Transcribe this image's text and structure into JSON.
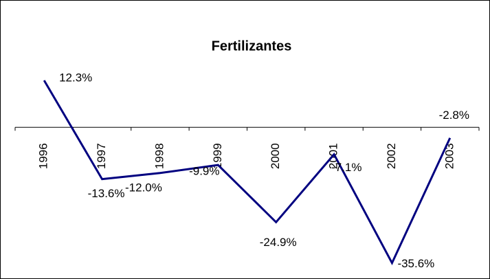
{
  "chart_data": {
    "type": "line",
    "title": "Fertilizantes",
    "categories": [
      "1996",
      "1997",
      "1998",
      "1999",
      "2000",
      "2001",
      "2002",
      "2003"
    ],
    "series": [
      {
        "name": "Fertilizantes",
        "color": "#000080",
        "values": [
          12.3,
          -13.6,
          -12.0,
          -9.9,
          -24.9,
          -7.1,
          -35.6,
          -2.8
        ],
        "value_labels": [
          "12.3%",
          "-13.6%",
          "-12.0%",
          "-9.9%",
          "-24.9%",
          "-7.1%",
          "-35.6%",
          "-2.8%"
        ]
      }
    ],
    "ylim": [
      -38,
      15
    ]
  }
}
